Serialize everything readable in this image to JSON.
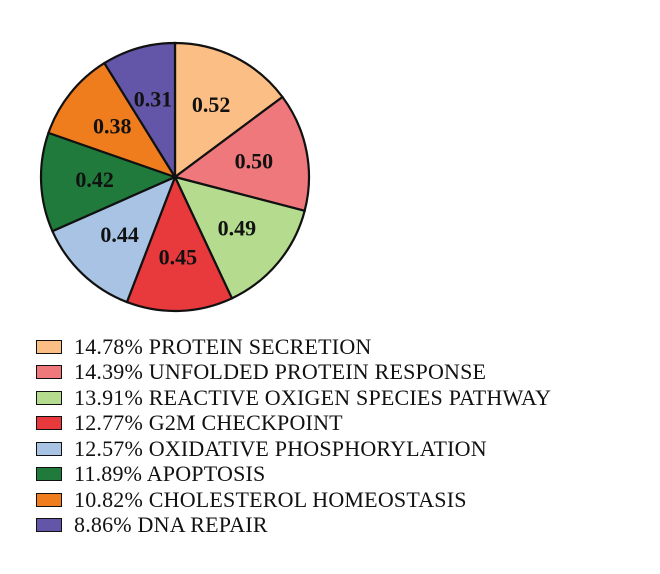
{
  "chart_data": {
    "type": "pie",
    "start": "top",
    "direction": "clockwise",
    "slices": [
      {
        "value": 0.52,
        "label": "0.52",
        "legend": "14.78% PROTEIN SECRETION",
        "color": "#fbbf85"
      },
      {
        "value": 0.5,
        "label": "0.50",
        "legend": "14.39% UNFOLDED PROTEIN RESPONSE",
        "color": "#ef787c"
      },
      {
        "value": 0.49,
        "label": "0.49",
        "legend": "13.91% REACTIVE OXIGEN SPECIES PATHWAY",
        "color": "#b4db8e"
      },
      {
        "value": 0.45,
        "label": "0.45",
        "legend": "12.77% G2M CHECKPOINT",
        "color": "#e8393d"
      },
      {
        "value": 0.44,
        "label": "0.44",
        "legend": "12.57% OXIDATIVE PHOSPHORYLATION",
        "color": "#a9c3e5"
      },
      {
        "value": 0.42,
        "label": "0.42",
        "legend": "11.89% APOPTOSIS",
        "color": "#1f7a3b"
      },
      {
        "value": 0.38,
        "label": "0.38",
        "legend": "10.82% CHOLESTEROL HOMEOSTASIS",
        "color": "#ef7d1e"
      },
      {
        "value": 0.31,
        "label": "0.31",
        "legend": "8.86% DNA REPAIR",
        "color": "#6356a8"
      }
    ]
  }
}
